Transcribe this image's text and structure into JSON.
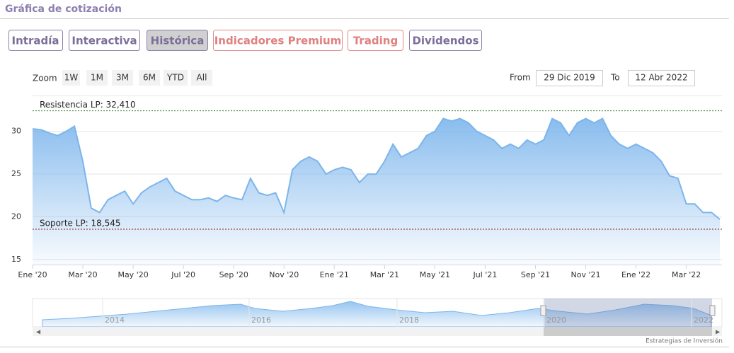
{
  "header": {
    "title": "Gráfica de cotización"
  },
  "tabs": [
    "Intradía",
    "Interactiva",
    "Histórica",
    "Indicadores Premium",
    "Trading",
    "Dividendos"
  ],
  "zoom": {
    "label": "Zoom",
    "buttons": [
      "1W",
      "1M",
      "3M",
      "6M",
      "YTD",
      "All"
    ]
  },
  "range": {
    "from_label": "From",
    "from": "29 Dic 2019",
    "to_label": "To",
    "to": "12 Abr 2022"
  },
  "navigator": {
    "labels": [
      "2014",
      "2016",
      "2018",
      "2020",
      "2022"
    ]
  },
  "credit": "Estrategias de Inversión",
  "chart_data": {
    "type": "area",
    "categories": [
      "Ene '20",
      null,
      null,
      null,
      null,
      null,
      "Mar '20",
      null,
      null,
      null,
      null,
      null,
      "May '20",
      null,
      null,
      null,
      null,
      null,
      "Jul '20",
      null,
      null,
      null,
      null,
      null,
      "Sep '20",
      null,
      null,
      null,
      null,
      null,
      "Nov '20",
      null,
      null,
      null,
      null,
      null,
      "Ene '21",
      null,
      null,
      null,
      null,
      null,
      "Mar '21",
      null,
      null,
      null,
      null,
      null,
      "May '21",
      null,
      null,
      null,
      null,
      null,
      "Jul '21",
      null,
      null,
      null,
      null,
      null,
      "Sep '21",
      null,
      null,
      null,
      null,
      null,
      "Nov '21",
      null,
      null,
      null,
      null,
      null,
      "Ene '22",
      null,
      null,
      null,
      null,
      null,
      "Mar '22",
      null,
      null,
      null,
      null
    ],
    "series": [
      {
        "color": "#7cb5ec",
        "values": [
          30.3,
          30.2,
          29.8,
          29.5,
          30.0,
          30.6,
          26.5,
          21,
          20.5,
          22.0,
          22.5,
          23.0,
          21.5,
          22.8,
          23.5,
          24.0,
          24.5,
          23.0,
          22.5,
          22.0,
          22.0,
          22.2,
          21.8,
          22.5,
          22.2,
          22.0,
          24.5,
          22.8,
          22.5,
          22.8,
          20.5,
          25.5,
          26.5,
          27.0,
          26.5,
          25.0,
          25.5,
          25.8,
          25.5,
          24.0,
          25.0,
          25.0,
          26.5,
          28.5,
          27.0,
          27.5,
          28.0,
          29.5,
          30.0,
          31.5,
          31.2,
          31.5,
          31.0,
          30.0,
          29.5,
          29.0,
          28.0,
          28.5,
          28.0,
          29.0,
          28.5,
          29.0,
          31.5,
          31.0,
          29.5,
          31.0,
          31.5,
          31.0,
          31.5,
          29.5,
          28.5,
          28.0,
          28.5,
          28.0,
          27.5,
          26.5,
          24.8,
          24.5,
          21.5,
          21.5,
          20.5,
          20.5,
          19.7
        ]
      }
    ],
    "ylim": [
      14.4,
      34.2
    ],
    "yticks": [
      15,
      20,
      25,
      30
    ],
    "grid": true,
    "lines": [
      {
        "label": "Resistencia LP: 32,410",
        "value": 32.41,
        "color": "#2e7d32"
      },
      {
        "label": "Soporte LP: 18,545",
        "value": 18.545,
        "color": "#8b1a1a"
      }
    ]
  }
}
